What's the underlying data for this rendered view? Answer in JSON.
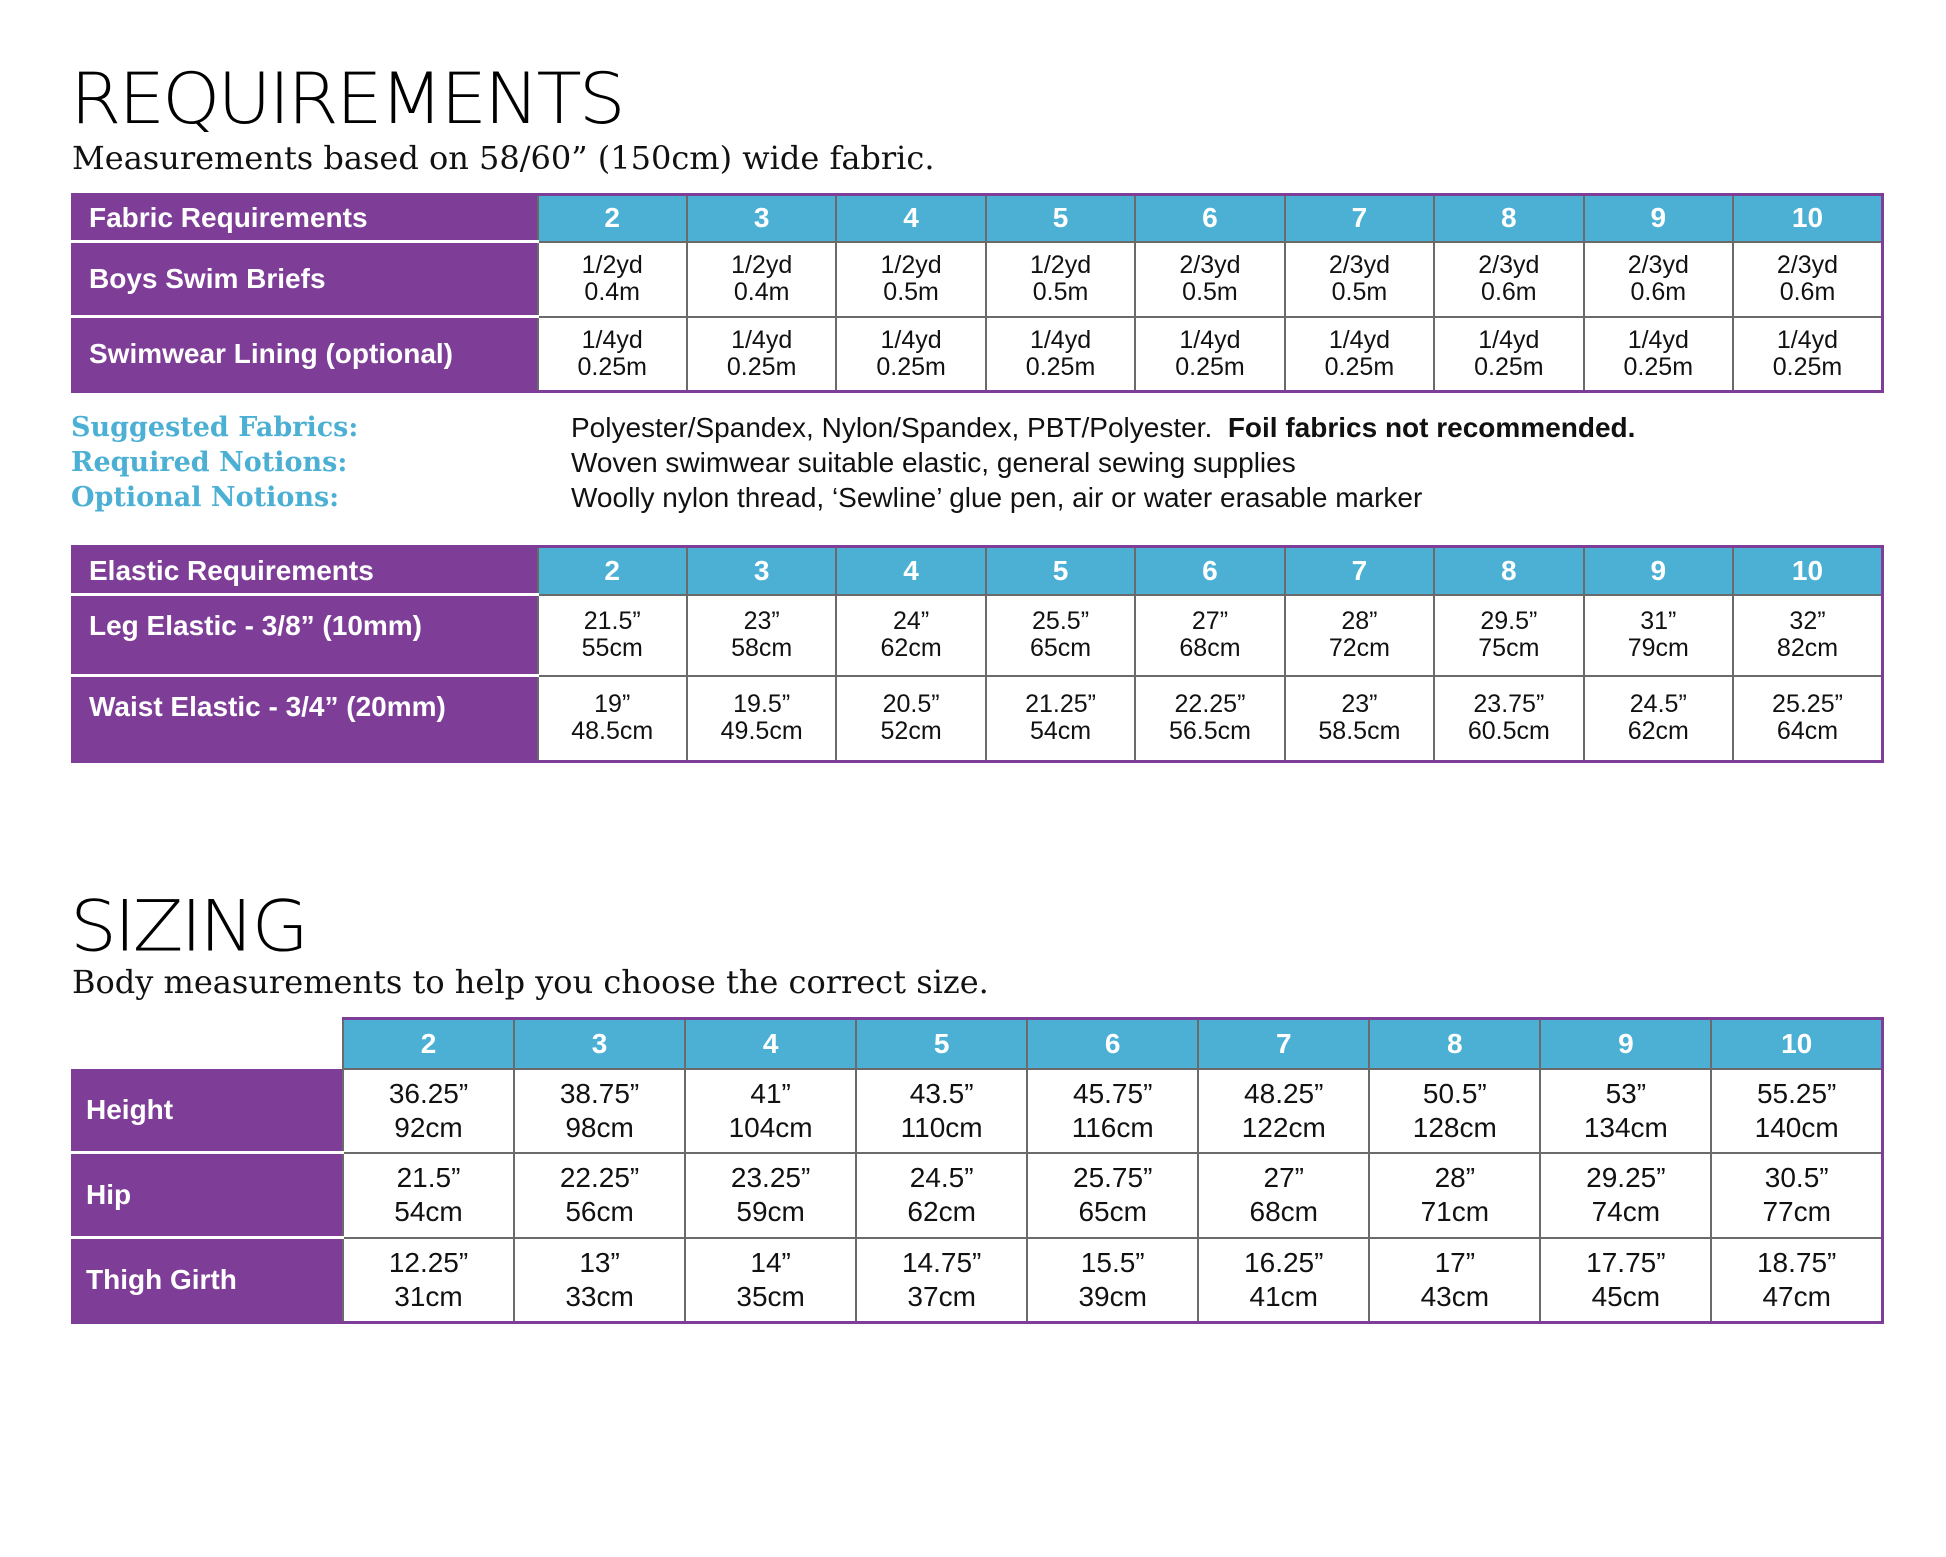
{
  "requirements": {
    "title": "REQUIREMENTS",
    "subtitle": "Measurements based on 58/60” (150cm) wide fabric.",
    "sizes": [
      "2",
      "3",
      "4",
      "5",
      "6",
      "7",
      "8",
      "9",
      "10"
    ],
    "fabric_table": {
      "header": "Fabric Requirements",
      "rows": [
        {
          "label": "Boys Swim Briefs",
          "values": [
            [
              "1/2yd",
              "0.4m"
            ],
            [
              "1/2yd",
              "0.4m"
            ],
            [
              "1/2yd",
              "0.5m"
            ],
            [
              "1/2yd",
              "0.5m"
            ],
            [
              "2/3yd",
              "0.5m"
            ],
            [
              "2/3yd",
              "0.5m"
            ],
            [
              "2/3yd",
              "0.6m"
            ],
            [
              "2/3yd",
              "0.6m"
            ],
            [
              "2/3yd",
              "0.6m"
            ]
          ]
        },
        {
          "label": "Swimwear Lining (optional)",
          "values": [
            [
              "1/4yd",
              "0.25m"
            ],
            [
              "1/4yd",
              "0.25m"
            ],
            [
              "1/4yd",
              "0.25m"
            ],
            [
              "1/4yd",
              "0.25m"
            ],
            [
              "1/4yd",
              "0.25m"
            ],
            [
              "1/4yd",
              "0.25m"
            ],
            [
              "1/4yd",
              "0.25m"
            ],
            [
              "1/4yd",
              "0.25m"
            ],
            [
              "1/4yd",
              "0.25m"
            ]
          ]
        }
      ]
    },
    "notes": [
      {
        "label": "Suggested Fabrics:",
        "value": "Polyester/Spandex, Nylon/Spandex, PBT/Polyester.",
        "bold": "Foil fabrics not recommended."
      },
      {
        "label": "Required Notions:",
        "value": "Woven swimwear suitable elastic, general sewing supplies",
        "bold": ""
      },
      {
        "label": "Optional Notions:",
        "value": "Woolly nylon thread, ‘Sewline’ glue pen, air or water erasable marker",
        "bold": ""
      }
    ],
    "elastic_table": {
      "header": "Elastic Requirements",
      "rows": [
        {
          "label": "Leg Elastic - 3/8” (10mm)",
          "values": [
            [
              "21.5”",
              "55cm"
            ],
            [
              "23”",
              "58cm"
            ],
            [
              "24”",
              "62cm"
            ],
            [
              "25.5”",
              "65cm"
            ],
            [
              "27”",
              "68cm"
            ],
            [
              "28”",
              "72cm"
            ],
            [
              "29.5”",
              "75cm"
            ],
            [
              "31”",
              "79cm"
            ],
            [
              "32”",
              "82cm"
            ]
          ]
        },
        {
          "label": "Waist Elastic - 3/4” (20mm)",
          "values": [
            [
              "19”",
              "48.5cm"
            ],
            [
              "19.5”",
              "49.5cm"
            ],
            [
              "20.5”",
              "52cm"
            ],
            [
              "21.25”",
              "54cm"
            ],
            [
              "22.25”",
              "56.5cm"
            ],
            [
              "23”",
              "58.5cm"
            ],
            [
              "23.75”",
              "60.5cm"
            ],
            [
              "24.5”",
              "62cm"
            ],
            [
              "25.25”",
              "64cm"
            ]
          ]
        }
      ]
    }
  },
  "sizing": {
    "title": "SIZING",
    "subtitle": "Body measurements to help you choose the correct size.",
    "sizes": [
      "2",
      "3",
      "4",
      "5",
      "6",
      "7",
      "8",
      "9",
      "10"
    ],
    "rows": [
      {
        "label": "Height",
        "values": [
          [
            "36.25”",
            "92cm"
          ],
          [
            "38.75”",
            "98cm"
          ],
          [
            "41”",
            "104cm"
          ],
          [
            "43.5”",
            "110cm"
          ],
          [
            "45.75”",
            "116cm"
          ],
          [
            "48.25”",
            "122cm"
          ],
          [
            "50.5”",
            "128cm"
          ],
          [
            "53”",
            "134cm"
          ],
          [
            "55.25”",
            "140cm"
          ]
        ]
      },
      {
        "label": "Hip",
        "values": [
          [
            "21.5”",
            "54cm"
          ],
          [
            "22.25”",
            "56cm"
          ],
          [
            "23.25”",
            "59cm"
          ],
          [
            "24.5”",
            "62cm"
          ],
          [
            "25.75”",
            "65cm"
          ],
          [
            "27”",
            "68cm"
          ],
          [
            "28”",
            "71cm"
          ],
          [
            "29.25”",
            "74cm"
          ],
          [
            "30.5”",
            "77cm"
          ]
        ]
      },
      {
        "label": "Thigh Girth",
        "values": [
          [
            "12.25”",
            "31cm"
          ],
          [
            "13”",
            "33cm"
          ],
          [
            "14”",
            "35cm"
          ],
          [
            "14.75”",
            "37cm"
          ],
          [
            "15.5”",
            "39cm"
          ],
          [
            "16.25”",
            "41cm"
          ],
          [
            "17”",
            "43cm"
          ],
          [
            "17.75”",
            "45cm"
          ],
          [
            "18.75”",
            "47cm"
          ]
        ]
      }
    ]
  },
  "colors": {
    "purple": "#7e3e98",
    "blue": "#4bb0d4"
  }
}
